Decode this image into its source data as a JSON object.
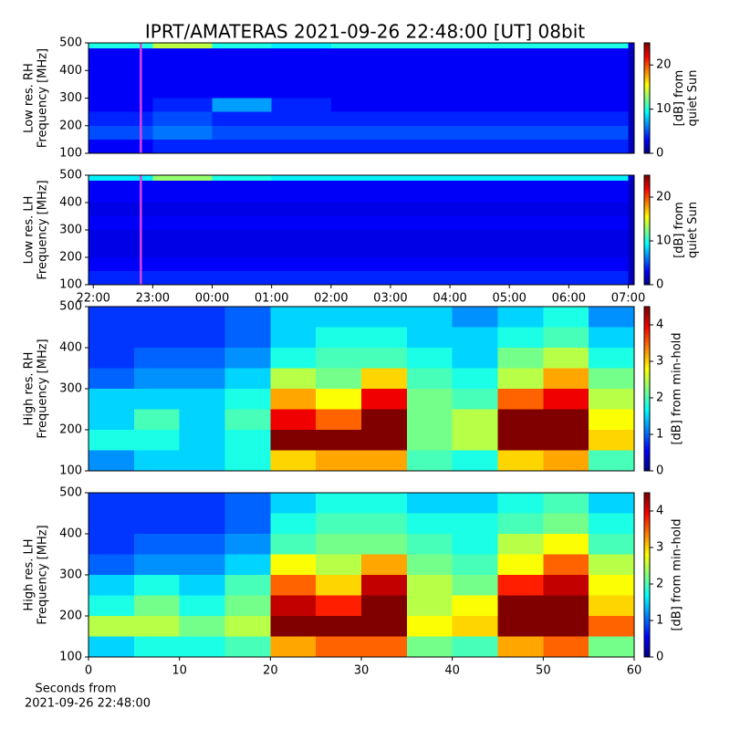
{
  "chart_data": [
    {
      "type": "heatmap",
      "title": "IPRT/AMATERAS 2021-09-26 22:48:00 [UT]   08bit",
      "ylabel": [
        "Low res. RH",
        "Frequency [MHz]"
      ],
      "colormap": "jet",
      "xlim": [
        -0.08,
        9.1
      ],
      "ylim": [
        100,
        500
      ],
      "yticks": [
        100,
        200,
        300,
        400,
        500
      ],
      "x_edges": [
        -0.08,
        1,
        2,
        3,
        4,
        5,
        6,
        7,
        8,
        9,
        9.1
      ],
      "y_edges": [
        100,
        150,
        200,
        250,
        300,
        350,
        400,
        450,
        480,
        500
      ],
      "values": [
        [
          3,
          4,
          4,
          4,
          4,
          4,
          4,
          4,
          4,
          1.5
        ],
        [
          5,
          6,
          5,
          5,
          5,
          5,
          5,
          5,
          5,
          1.5
        ],
        [
          4,
          5,
          4,
          4,
          4,
          4,
          4,
          4,
          4,
          1.5
        ],
        [
          3,
          4,
          7,
          4,
          3,
          3,
          3,
          3,
          3,
          1.5
        ],
        [
          3,
          3,
          3,
          3,
          3,
          3,
          3,
          3,
          3,
          1.5
        ],
        [
          3,
          3,
          3,
          3,
          3,
          3,
          3,
          3,
          3,
          1.5
        ],
        [
          3,
          3,
          3,
          3,
          3,
          3,
          3,
          3,
          3,
          1.5
        ],
        [
          3,
          3,
          3,
          3,
          3,
          3,
          3,
          3,
          3,
          1.5
        ],
        [
          10,
          14,
          10,
          9,
          10,
          10,
          10,
          10,
          10,
          2
        ]
      ],
      "marker_x": 0.8,
      "marker_color": "#e040e0",
      "clim": [
        0,
        25
      ],
      "cticks": [
        0,
        10,
        20
      ],
      "clabel": [
        "[dB] from",
        "quiet Sun"
      ]
    },
    {
      "type": "heatmap",
      "ylabel": [
        "Low res. LH",
        "Frequency [MHz]"
      ],
      "colormap": "jet",
      "xlim": [
        -0.08,
        9.1
      ],
      "ylim": [
        100,
        500
      ],
      "yticks": [
        100,
        200,
        300,
        400,
        500
      ],
      "xticks": [
        {
          "value": 0,
          "label": "22:00"
        },
        {
          "value": 1,
          "label": "23:00"
        },
        {
          "value": 2,
          "label": "00:00"
        },
        {
          "value": 3,
          "label": "01:00"
        },
        {
          "value": 4,
          "label": "02:00"
        },
        {
          "value": 5,
          "label": "03:00"
        },
        {
          "value": 6,
          "label": "04:00"
        },
        {
          "value": 7,
          "label": "05:00"
        },
        {
          "value": 8,
          "label": "06:00"
        },
        {
          "value": 9,
          "label": "07:00"
        }
      ],
      "x_edges": [
        -0.08,
        1,
        2,
        3,
        4,
        5,
        6,
        7,
        8,
        9,
        9.1
      ],
      "y_edges": [
        100,
        150,
        200,
        250,
        300,
        350,
        400,
        450,
        480,
        500
      ],
      "values": [
        [
          4,
          4,
          4,
          4,
          4,
          4,
          4,
          4,
          4,
          1.5
        ],
        [
          3,
          3,
          3,
          3,
          3,
          3,
          3,
          3,
          3,
          1.5
        ],
        [
          2.5,
          2.5,
          2.5,
          2.5,
          2.5,
          2.5,
          2.5,
          2.5,
          2.5,
          1.5
        ],
        [
          2.5,
          2.5,
          2.5,
          2.5,
          2.5,
          2.5,
          2.5,
          2.5,
          2.5,
          1.5
        ],
        [
          3,
          3,
          3,
          3,
          3,
          3,
          3,
          3,
          3,
          1.5
        ],
        [
          2.5,
          2.5,
          2.5,
          2.5,
          2.5,
          2.5,
          2.5,
          2.5,
          2.5,
          1.5
        ],
        [
          3,
          3,
          3,
          3,
          3,
          3,
          3,
          3,
          3,
          1.5
        ],
        [
          3,
          3,
          3,
          3,
          3,
          3,
          3,
          3,
          3,
          1.5
        ],
        [
          9,
          13,
          10,
          9,
          9,
          9,
          9,
          9,
          9,
          2
        ]
      ],
      "marker_x": 0.8,
      "marker_color": "#e040e0",
      "clim": [
        0,
        25
      ],
      "cticks": [
        0,
        10,
        20
      ],
      "clabel": [
        "[dB] from",
        "quiet Sun"
      ]
    },
    {
      "type": "heatmap",
      "ylabel": [
        "High res. RH",
        "Frequency [MHz]"
      ],
      "colormap": "jet",
      "xlim": [
        0,
        60
      ],
      "ylim": [
        100,
        500
      ],
      "yticks": [
        100,
        200,
        300,
        400,
        500
      ],
      "x_edges": [
        0,
        5,
        10,
        15,
        20,
        25,
        30,
        35,
        40,
        45,
        50,
        55,
        60
      ],
      "y_edges": [
        100,
        150,
        200,
        250,
        300,
        350,
        400,
        450,
        500
      ],
      "values": [
        [
          1.2,
          1.5,
          1.5,
          1.8,
          3.0,
          3.2,
          3.2,
          2.0,
          1.8,
          3.0,
          3.2,
          2.0
        ],
        [
          1.8,
          1.8,
          1.5,
          1.8,
          4.5,
          4.5,
          4.5,
          2.2,
          2.5,
          4.5,
          4.5,
          3.0
        ],
        [
          1.5,
          2.0,
          1.5,
          2.0,
          4.0,
          3.5,
          4.5,
          2.2,
          2.5,
          4.5,
          4.5,
          2.8
        ],
        [
          1.5,
          1.5,
          1.5,
          1.8,
          3.2,
          2.8,
          4.0,
          2.2,
          2.0,
          3.5,
          4.0,
          2.5
        ],
        [
          1.0,
          1.2,
          1.2,
          1.5,
          2.5,
          2.2,
          3.0,
          2.0,
          1.8,
          2.5,
          3.2,
          2.2
        ],
        [
          0.8,
          1.0,
          1.0,
          1.2,
          1.8,
          2.0,
          2.0,
          1.8,
          1.5,
          2.2,
          2.5,
          1.8
        ],
        [
          0.8,
          0.8,
          0.8,
          1.0,
          1.5,
          1.8,
          1.8,
          1.5,
          1.5,
          1.8,
          2.0,
          1.5
        ],
        [
          0.8,
          0.8,
          0.8,
          1.0,
          1.5,
          1.5,
          1.5,
          1.5,
          1.2,
          1.5,
          1.8,
          1.2
        ]
      ],
      "clim": [
        0,
        4.5
      ],
      "cticks": [
        0,
        1,
        2,
        3,
        4
      ],
      "clabel": [
        "[dB] from min-hold"
      ]
    },
    {
      "type": "heatmap",
      "ylabel": [
        "High res. LH",
        "Frequency [MHz]"
      ],
      "colormap": "jet",
      "xlabel": [
        "Seconds from",
        "2021-09-26 22:48:00"
      ],
      "xlim": [
        0,
        60
      ],
      "ylim": [
        100,
        500
      ],
      "yticks": [
        100,
        200,
        300,
        400,
        500
      ],
      "xticks": [
        0,
        10,
        20,
        30,
        40,
        50,
        60
      ],
      "x_edges": [
        0,
        5,
        10,
        15,
        20,
        25,
        30,
        35,
        40,
        45,
        50,
        55,
        60
      ],
      "y_edges": [
        100,
        150,
        200,
        250,
        300,
        350,
        400,
        450,
        500
      ],
      "values": [
        [
          1.5,
          1.8,
          1.8,
          2.0,
          3.2,
          3.5,
          3.5,
          2.2,
          2.0,
          3.2,
          3.5,
          2.2
        ],
        [
          2.5,
          2.5,
          2.2,
          2.5,
          4.5,
          4.5,
          4.5,
          2.8,
          3.0,
          4.5,
          4.5,
          3.5
        ],
        [
          1.8,
          2.2,
          1.8,
          2.2,
          4.2,
          3.8,
          4.5,
          2.5,
          2.8,
          4.5,
          4.5,
          3.0
        ],
        [
          1.5,
          1.8,
          1.5,
          2.0,
          3.5,
          3.0,
          4.2,
          2.5,
          2.2,
          3.8,
          4.2,
          2.8
        ],
        [
          1.0,
          1.2,
          1.2,
          1.5,
          2.8,
          2.5,
          3.2,
          2.2,
          2.0,
          2.8,
          3.5,
          2.5
        ],
        [
          0.8,
          1.0,
          1.0,
          1.2,
          2.0,
          2.2,
          2.2,
          2.0,
          1.8,
          2.5,
          2.8,
          2.0
        ],
        [
          0.8,
          0.8,
          0.8,
          1.0,
          1.8,
          2.0,
          2.0,
          1.8,
          1.8,
          2.0,
          2.2,
          1.8
        ],
        [
          0.8,
          0.8,
          0.8,
          1.0,
          1.5,
          1.8,
          1.8,
          1.5,
          1.5,
          1.8,
          2.0,
          1.5
        ]
      ],
      "clim": [
        0,
        4.5
      ],
      "cticks": [
        0,
        1,
        2,
        3,
        4
      ],
      "clabel": [
        "[dB] from min-hold"
      ]
    }
  ]
}
